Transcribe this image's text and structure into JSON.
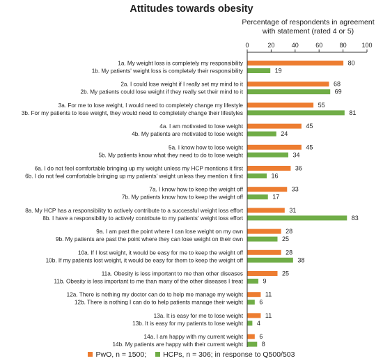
{
  "chart_data": {
    "type": "bar",
    "orientation": "horizontal",
    "title": "Attitudes towards obesity",
    "xlabel_lines": [
      "Percentage of respondents in agreement",
      "with statement (rated 4 or 5)"
    ],
    "xlim": [
      0,
      100
    ],
    "xticks": [
      0,
      20,
      40,
      60,
      80,
      100
    ],
    "series": [
      {
        "name": "PwO, n = 1500;",
        "color": "#ed7d31"
      },
      {
        "name": "HCPs, n = 306; in response to Q500/503",
        "color": "#70ad47"
      }
    ],
    "groups": [
      {
        "labels": [
          "1a. My weight loss is completely my responsibility",
          "1b. My patients' weight loss is completely their responsibility"
        ],
        "values": [
          80,
          19
        ]
      },
      {
        "labels": [
          "2a. I could lose weight if I really set my mind to it",
          "2b. My patients could lose weight if they really set their mind to it"
        ],
        "values": [
          68,
          69
        ]
      },
      {
        "labels": [
          "3a. For me to lose weight, I would need to completely change my lifestyle",
          "3b. For my patients to lose weight, they would need to completely change their lifestyles"
        ],
        "values": [
          55,
          81
        ]
      },
      {
        "labels": [
          "4a. I am motivated to lose weight",
          "4b. My patients are motivated to lose weight"
        ],
        "values": [
          45,
          24
        ]
      },
      {
        "labels": [
          "5a. I know how to lose weight",
          "5b. My patients know what they need to do to lose weight"
        ],
        "values": [
          45,
          34
        ]
      },
      {
        "labels": [
          "6a. I do not feel comfortable bringing up my weight unless my HCP mentions it first",
          "6b. I do not feel comfortable bringing up my patients' weight unless they mention it first"
        ],
        "values": [
          36,
          16
        ]
      },
      {
        "labels": [
          "7a. I know how to keep the weight off",
          "7b. My patients know how to keep the weight off"
        ],
        "values": [
          33,
          17
        ]
      },
      {
        "labels": [
          "8a. My HCP has a responsibility to actively contribute to a successful weight loss effort",
          "8b. I have a responsibility to actively contribute to my patients' weight loss effort"
        ],
        "values": [
          31,
          83
        ]
      },
      {
        "labels": [
          "9a. I am past the point where I can lose weight on my own",
          "9b. My patients are past the point where they can lose weight on their own"
        ],
        "values": [
          28,
          25
        ]
      },
      {
        "labels": [
          "10a. If I lost weight, it would be easy for me to keep the weight off",
          "10b. If my patients lost weight, it would be easy for them to keep the weight off"
        ],
        "values": [
          28,
          38
        ]
      },
      {
        "labels": [
          "11a. Obesity is less important to me than other diseases",
          "11b. Obesity is less important to me than many of the other diseases I treat"
        ],
        "values": [
          25,
          9
        ]
      },
      {
        "labels": [
          "12a. There is nothing my doctor can do to help me manage my weight",
          "12b. There is nothing I can do to help patients manage their weight"
        ],
        "values": [
          11,
          6
        ]
      },
      {
        "labels": [
          "13a. It is easy for me to lose weight",
          "13b. It is easy for my patients to lose weight"
        ],
        "values": [
          11,
          4
        ]
      },
      {
        "labels": [
          "14a. I am happy with my current weight",
          "14b. My patients are happy with their current weight"
        ],
        "values": [
          6,
          8
        ]
      }
    ]
  }
}
